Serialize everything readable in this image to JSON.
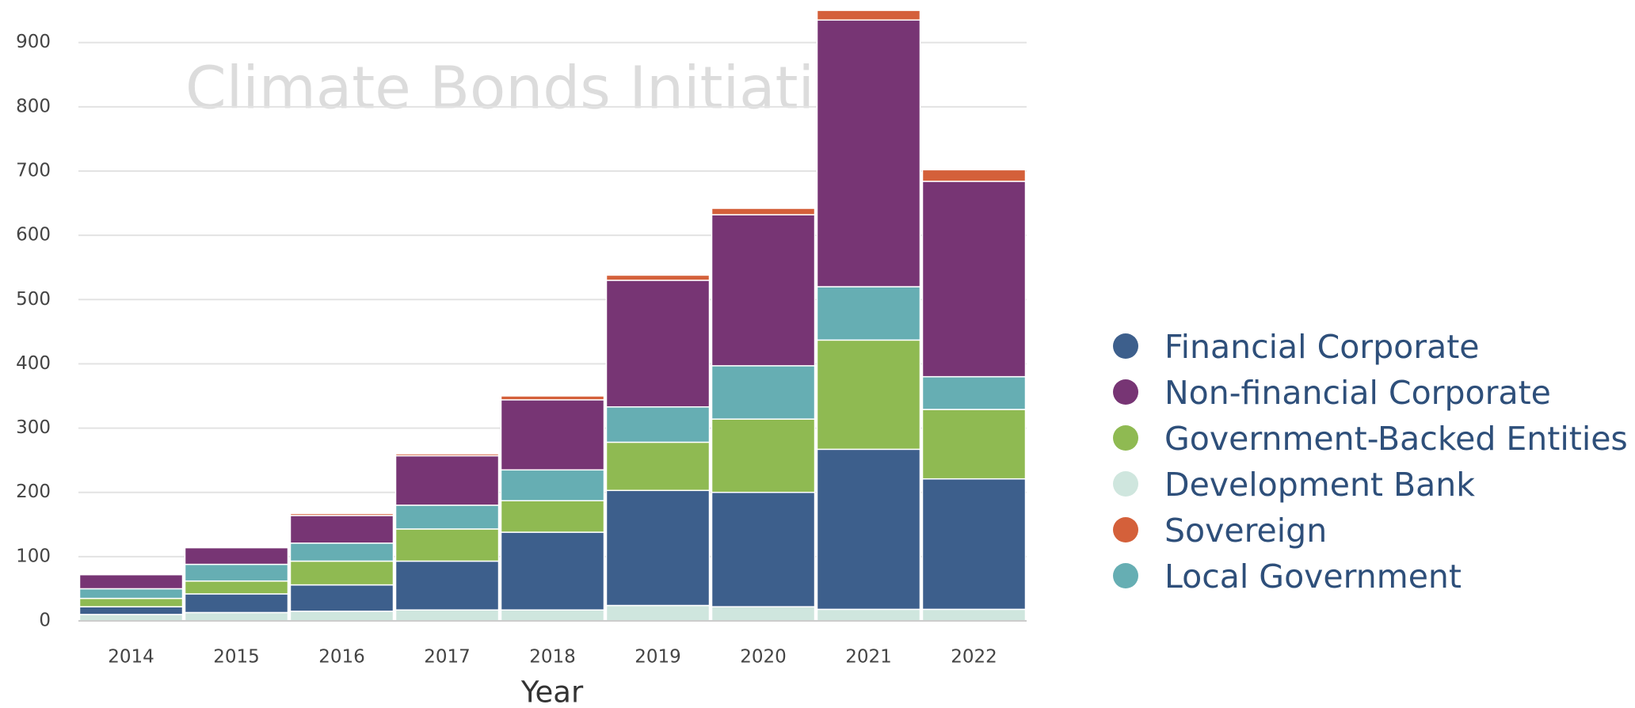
{
  "chart_data": {
    "type": "stacked_bar",
    "annotation": "Climate Bonds Initiative",
    "xlabel": "Year",
    "categories": [
      "2014",
      "2015",
      "2016",
      "2017",
      "2018",
      "2019",
      "2020",
      "2021",
      "2022"
    ],
    "series": [
      {
        "name": "Financial Corporate",
        "color": "#3d5f8c",
        "values": [
          12,
          29,
          41,
          76,
          121,
          179,
          178,
          249,
          203
        ]
      },
      {
        "name": "Non-financial Corporate",
        "color": "#773574",
        "values": [
          22,
          26,
          43,
          77,
          109,
          197,
          235,
          415,
          304
        ]
      },
      {
        "name": "Government-Backed Entities",
        "color": "#8fba52",
        "values": [
          13,
          20,
          37,
          50,
          49,
          75,
          114,
          170,
          108
        ]
      },
      {
        "name": "Development Bank",
        "color": "#cfe6de",
        "values": [
          10,
          13,
          15,
          17,
          17,
          24,
          22,
          18,
          18
        ]
      },
      {
        "name": "Sovereign",
        "color": "#d4603a",
        "values": [
          1,
          1,
          3,
          3,
          6,
          8,
          10,
          15,
          18
        ]
      },
      {
        "name": "Local Government",
        "color": "#66aeb3",
        "values": [
          15,
          26,
          28,
          37,
          48,
          55,
          83,
          83,
          51
        ]
      }
    ],
    "ylim": [
      0,
      960
    ],
    "yticks": [
      0,
      100,
      200,
      300,
      400,
      500,
      600,
      700,
      800,
      900
    ],
    "grid": true,
    "legend": "right"
  }
}
